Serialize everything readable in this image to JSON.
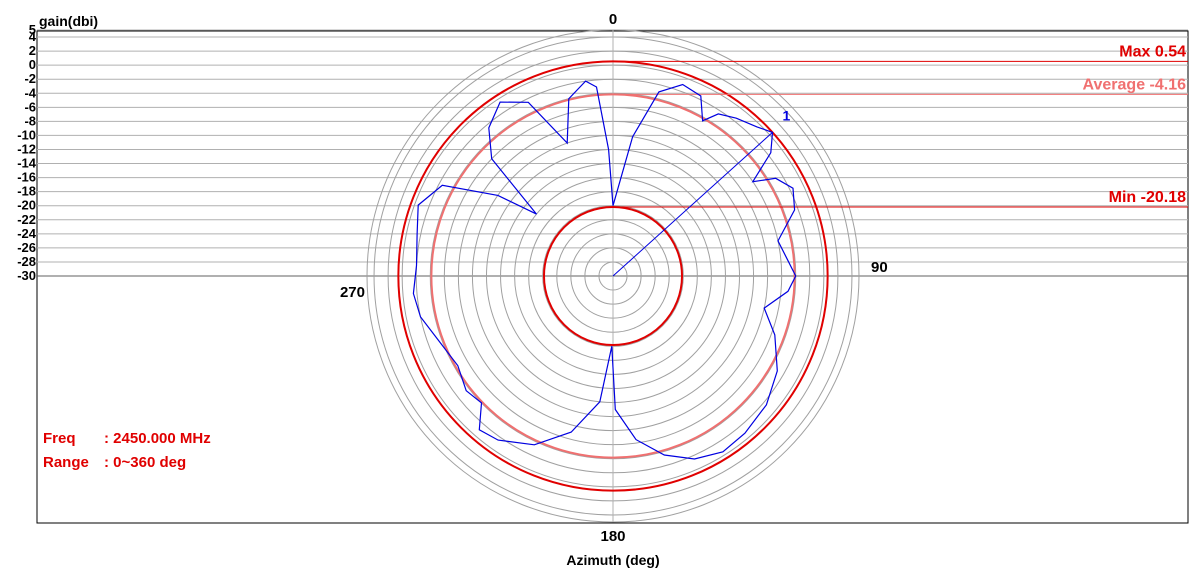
{
  "chart_data": {
    "type": "polar",
    "ylabel": "gain(dbi)",
    "xlabel": "Azimuth (deg)",
    "r_ticks": [
      5,
      4,
      2,
      0,
      -2,
      -4,
      -6,
      -8,
      -10,
      -12,
      -14,
      -16,
      -18,
      -20,
      -22,
      -24,
      -26,
      -28,
      -30
    ],
    "r_range": [
      -30,
      5
    ],
    "angle_labels": [
      {
        "angle": 0,
        "text": "0"
      },
      {
        "angle": 90,
        "text": "90"
      },
      {
        "angle": 180,
        "text": "180"
      },
      {
        "angle": 270,
        "text": "270"
      }
    ],
    "stats": {
      "max": {
        "label": "Max 0.54",
        "value": 0.54,
        "color": "#e00000"
      },
      "average": {
        "label": "Average -4.16",
        "value": -4.16,
        "color": "#f07070"
      },
      "min": {
        "label": "Min -20.18",
        "value": -20.18,
        "color": "#e00000"
      }
    },
    "marker": {
      "label": "1",
      "angle": 48,
      "value": 0.54
    },
    "info": {
      "freq_label": "Freq",
      "freq_value": ": 2450.000 MHz",
      "range_label": "Range",
      "range_value": ": 0~360 deg"
    },
    "series": [
      {
        "color": "#0000e0",
        "points": [
          [
            0,
            -20.0
          ],
          [
            8,
            -10.0
          ],
          [
            14,
            -3.0
          ],
          [
            20,
            -1.0
          ],
          [
            26,
            -1.5
          ],
          [
            30,
            -4.5
          ],
          [
            33,
            -2.5
          ],
          [
            38,
            -1.5
          ],
          [
            44,
            -0.5
          ],
          [
            48,
            0.54
          ],
          [
            52,
            -1.5
          ],
          [
            56,
            -6.0
          ],
          [
            59,
            -3.0
          ],
          [
            64,
            -1.5
          ],
          [
            70,
            -2.5
          ],
          [
            78,
            -6.0
          ],
          [
            85,
            -5.0
          ],
          [
            90,
            -4.0
          ],
          [
            95,
            -5.0
          ],
          [
            102,
            -8.0
          ],
          [
            110,
            -5.5
          ],
          [
            120,
            -3.0
          ],
          [
            130,
            -1.5
          ],
          [
            140,
            -0.8
          ],
          [
            148,
            -0.5
          ],
          [
            156,
            -1.5
          ],
          [
            164,
            -3.5
          ],
          [
            172,
            -6.5
          ],
          [
            179,
            -11.0
          ],
          [
            181,
            -20.0
          ],
          [
            186,
            -12.0
          ],
          [
            195,
            -7.0
          ],
          [
            205,
            -3.5
          ],
          [
            215,
            -1.5
          ],
          [
            221,
            -1.0
          ],
          [
            226,
            -4.0
          ],
          [
            232,
            -3.5
          ],
          [
            240,
            -4.5
          ],
          [
            250,
            -3.5
          ],
          [
            258,
            -2.0
          ],
          [
            265,
            -1.5
          ],
          [
            273,
            -2.0
          ],
          [
            282,
            -1.5
          ],
          [
            290,
            -0.5
          ],
          [
            298,
            -2.5
          ],
          [
            305,
            -10.0
          ],
          [
            309,
            -16.0
          ],
          [
            314,
            -6.0
          ],
          [
            320,
            -2.5
          ],
          [
            327,
            -0.5
          ],
          [
            334,
            -2.5
          ],
          [
            341,
            -10.0
          ],
          [
            346,
            -4.0
          ],
          [
            352,
            -2.0
          ],
          [
            355,
            -3.0
          ],
          [
            358,
            -12.0
          ],
          [
            360,
            -20.0
          ]
        ]
      }
    ]
  }
}
